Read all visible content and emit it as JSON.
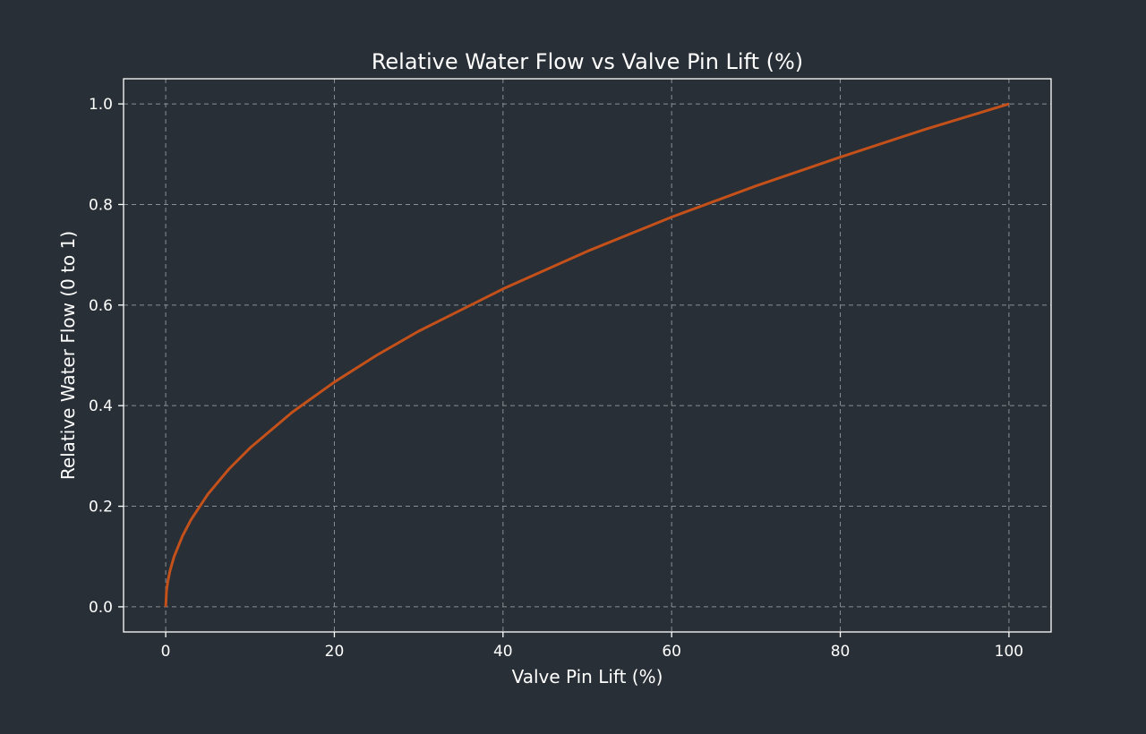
{
  "chart_data": {
    "type": "line",
    "title": "Relative Water Flow vs Valve Pin Lift (%)",
    "xlabel": "Valve Pin Lift (%)",
    "ylabel": "Relative Water Flow (0 to 1)",
    "xlim": [
      -5,
      105
    ],
    "ylim": [
      -0.05,
      1.05
    ],
    "xticks": [
      0,
      20,
      40,
      60,
      80,
      100
    ],
    "xtick_labels": [
      "0",
      "20",
      "40",
      "60",
      "80",
      "100"
    ],
    "yticks": [
      0,
      0.2,
      0.4,
      0.6,
      0.8,
      1.0
    ],
    "ytick_labels": [
      "0.0",
      "0.2",
      "0.4",
      "0.6",
      "0.8",
      "1.0"
    ],
    "grid": true,
    "grid_style": "dashed",
    "colors": {
      "background": "#282f36",
      "line": "#c4501a",
      "axes": "#ffffff",
      "grid": "#8a8f94"
    },
    "series": [
      {
        "x": [
          0,
          0.1,
          0.25,
          0.5,
          1,
          2,
          3,
          5,
          7.5,
          10,
          15,
          20,
          25,
          30,
          40,
          50,
          60,
          70,
          80,
          90,
          100
        ],
        "y": [
          0,
          0.032,
          0.05,
          0.071,
          0.1,
          0.141,
          0.173,
          0.224,
          0.274,
          0.316,
          0.387,
          0.447,
          0.5,
          0.548,
          0.632,
          0.707,
          0.775,
          0.837,
          0.894,
          0.949,
          1.0
        ]
      }
    ]
  }
}
